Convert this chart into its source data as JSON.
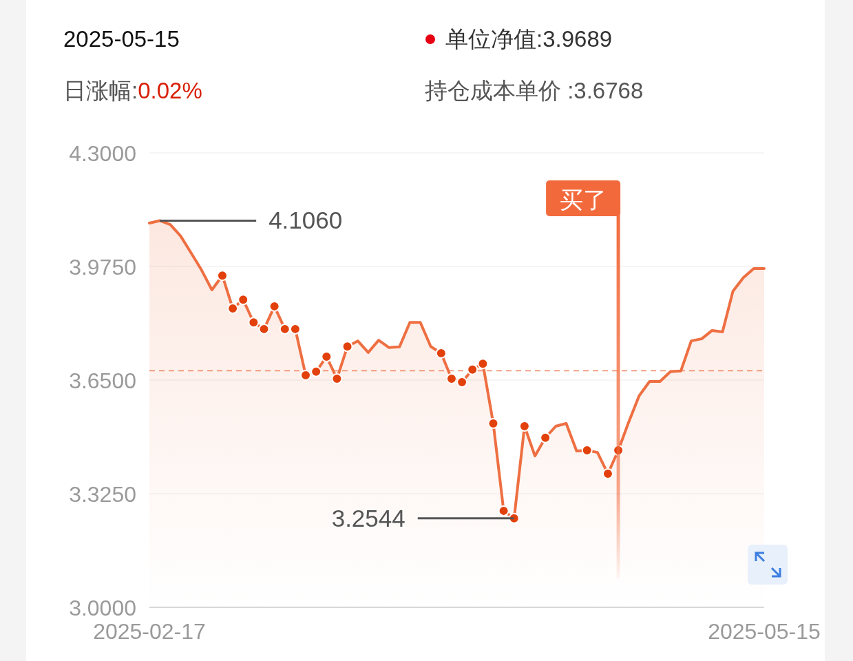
{
  "chart_data": {
    "type": "line",
    "categories": [
      "2025-02-17",
      null,
      null,
      null,
      null,
      null,
      null,
      null,
      null,
      null,
      null,
      null,
      null,
      null,
      null,
      null,
      null,
      null,
      null,
      null,
      null,
      null,
      null,
      null,
      null,
      null,
      null,
      null,
      null,
      null,
      null,
      null,
      null,
      null,
      null,
      null,
      null,
      null,
      null,
      null,
      null,
      null,
      null,
      null,
      null,
      null,
      null,
      null,
      null,
      null,
      null,
      null,
      null,
      null,
      null,
      null,
      null,
      null,
      null,
      "2025-05-15"
    ],
    "series": [
      {
        "type": "area",
        "color": "#ee6f42",
        "values": [
          4.099,
          4.106,
          4.095,
          4.062,
          4.014,
          3.965,
          3.908,
          3.949,
          3.855,
          3.88,
          3.815,
          3.796,
          3.861,
          3.796,
          3.796,
          3.664,
          3.674,
          3.717,
          3.654,
          3.746,
          3.762,
          3.729,
          3.764,
          3.743,
          3.745,
          3.815,
          3.815,
          3.746,
          3.727,
          3.654,
          3.644,
          3.68,
          3.697,
          3.526,
          3.276,
          3.2544,
          3.518,
          3.433,
          3.485,
          3.518,
          3.526,
          3.447,
          3.449,
          3.443,
          3.382,
          3.449,
          3.53,
          3.605,
          3.646,
          3.646,
          3.674,
          3.676,
          3.762,
          3.768,
          3.792,
          3.788,
          3.904,
          3.943,
          3.969,
          3.9689
        ]
      },
      {
        "type": "scatter",
        "color": "#e2410c",
        "marker": "circle",
        "values": [
          null,
          null,
          null,
          null,
          null,
          null,
          null,
          3.949,
          3.855,
          3.88,
          3.815,
          3.796,
          3.861,
          3.796,
          3.796,
          3.664,
          3.674,
          3.717,
          3.654,
          3.746,
          null,
          null,
          null,
          null,
          null,
          null,
          null,
          null,
          3.727,
          3.654,
          3.644,
          3.68,
          3.697,
          3.526,
          3.276,
          3.2544,
          3.518,
          null,
          3.485,
          null,
          null,
          null,
          3.449,
          null,
          3.382,
          3.449,
          null,
          null,
          null,
          null,
          null,
          null,
          null,
          null,
          null,
          null,
          null,
          null,
          null,
          null
        ]
      }
    ],
    "ylim": [
      3.0,
      4.3
    ],
    "yticks": [
      {
        "value": 3.0,
        "label": "3.0000"
      },
      {
        "value": 3.325,
        "label": "3.3250"
      },
      {
        "value": 3.65,
        "label": "3.6500"
      },
      {
        "value": 3.975,
        "label": "3.9750"
      },
      {
        "value": 4.3,
        "label": "4.3000"
      }
    ],
    "grid": "y",
    "ref_lines": [
      {
        "axis": "y",
        "value": 3.6768,
        "color": "#f08a6a",
        "line_style": "dashed"
      }
    ],
    "annotations": [
      "2025-05-15",
      "单位净值:3.9689",
      "日涨幅:0.02%",
      "持仓成本单价 :3.6768",
      "4.1060",
      "3.2544",
      "买了"
    ]
  }
}
